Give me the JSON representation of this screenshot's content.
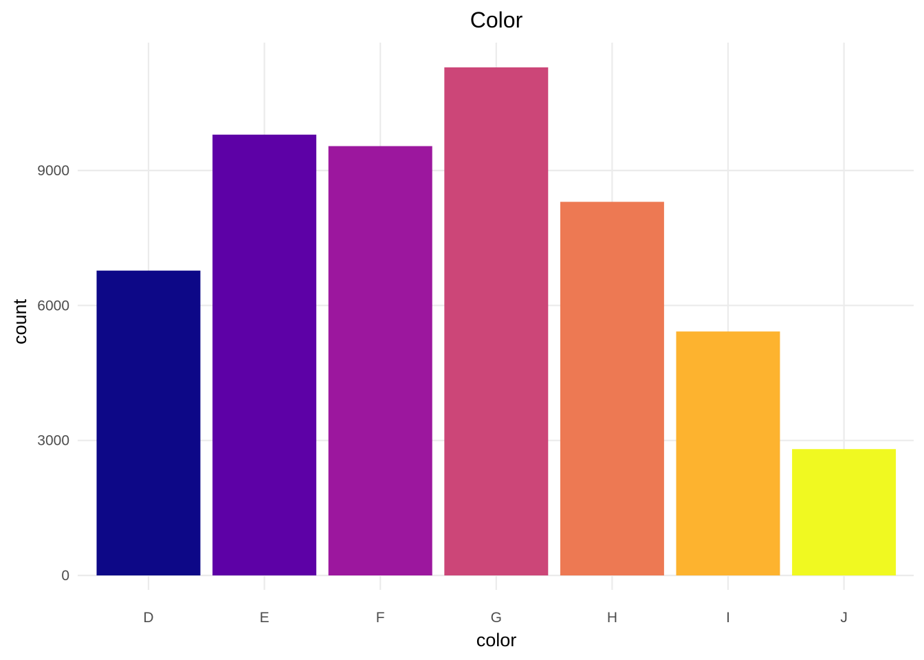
{
  "chart_data": {
    "type": "bar",
    "title": "Color",
    "xlabel": "color",
    "ylabel": "count",
    "categories": [
      "D",
      "E",
      "F",
      "G",
      "H",
      "I",
      "J"
    ],
    "values": [
      6775,
      9797,
      9542,
      11292,
      8304,
      5422,
      2808
    ],
    "colors": [
      "#0D0887",
      "#5D01A6",
      "#9C179E",
      "#CC4678",
      "#ED7953",
      "#FDB32F",
      "#F0F921"
    ],
    "yticks": [
      0,
      3000,
      6000,
      9000
    ],
    "ytick_labels": [
      "0",
      "3000",
      "6000",
      "9000"
    ],
    "ylim": [
      0,
      11850
    ],
    "grid": true,
    "legend": "none"
  }
}
